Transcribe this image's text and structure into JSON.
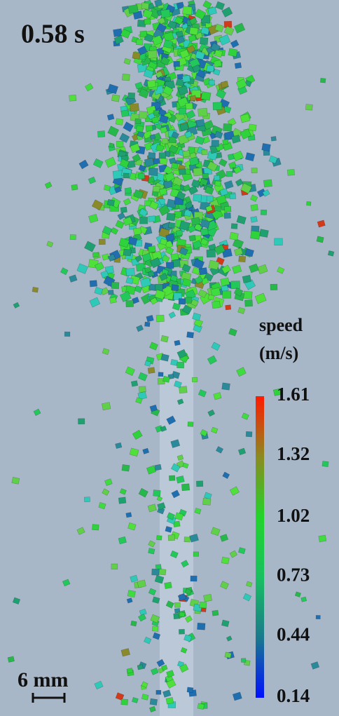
{
  "time_label": "0.58 s",
  "colorbar": {
    "title": [
      "speed",
      "(m/s)"
    ],
    "ticks": [
      1.61,
      1.32,
      1.02,
      0.73,
      0.44,
      0.14
    ]
  },
  "scale_bar": {
    "label": "6 mm"
  }
}
